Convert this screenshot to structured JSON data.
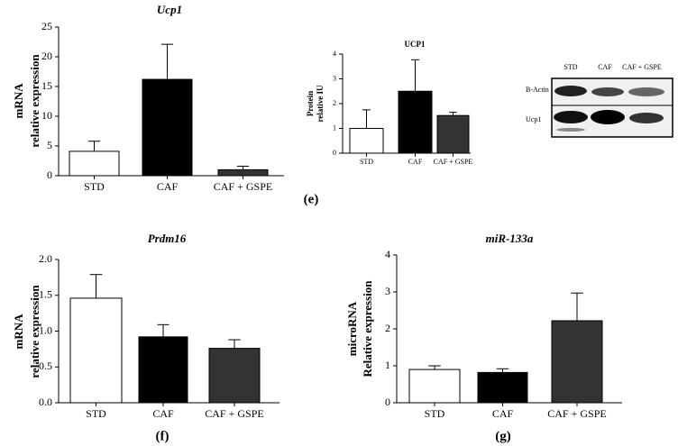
{
  "chart_data": [
    {
      "type": "bar",
      "title": "Ucp1",
      "ylabel": [
        "mRNA",
        "relative expression"
      ],
      "categories": [
        "STD",
        "CAF",
        "CAF + GSPE"
      ],
      "values": [
        4.1,
        16.2,
        1.0
      ],
      "errors": [
        1.7,
        5.9,
        0.6
      ],
      "colors": [
        "#ffffff",
        "#000000",
        "#333333"
      ],
      "ylim": [
        0,
        25
      ],
      "yticks": [
        0,
        5,
        10,
        15,
        20,
        25
      ]
    },
    {
      "type": "bar",
      "title": "UCP1",
      "ylabel": [
        "Protein",
        "relative IU"
      ],
      "categories": [
        "STD",
        "CAF",
        "CAF + GSPE"
      ],
      "values": [
        1.0,
        2.5,
        1.52
      ],
      "errors": [
        0.75,
        1.27,
        0.13
      ],
      "colors": [
        "#ffffff",
        "#000000",
        "#333333"
      ],
      "ylim": [
        0,
        4
      ],
      "yticks": [
        0,
        1,
        2,
        3,
        4
      ]
    },
    {
      "type": "bar",
      "title": "Prdm16",
      "ylabel": [
        "mRNA",
        "relative expression"
      ],
      "categories": [
        "STD",
        "CAF",
        "CAF + GSPE"
      ],
      "values": [
        1.46,
        0.92,
        0.76
      ],
      "errors": [
        0.33,
        0.17,
        0.12
      ],
      "colors": [
        "#ffffff",
        "#000000",
        "#333333"
      ],
      "ylim": [
        0,
        2
      ],
      "yticks": [
        {
          "value": 0,
          "label": "0.0"
        },
        {
          "value": 0.5,
          "label": "0.5"
        },
        {
          "value": 1,
          "label": "1.0"
        },
        {
          "value": 1.5,
          "label": "1.5"
        },
        {
          "value": 2,
          "label": "2.0"
        }
      ]
    },
    {
      "type": "bar",
      "title": "miR-133a",
      "ylabel": [
        "microRNA",
        "Relative expression"
      ],
      "categories": [
        "STD",
        "CAF",
        "CAF + GSPE"
      ],
      "values": [
        0.9,
        0.82,
        2.22
      ],
      "errors": [
        0.1,
        0.1,
        0.75
      ],
      "colors": [
        "#ffffff",
        "#000000",
        "#333333"
      ],
      "ylim": [
        0,
        4
      ],
      "yticks": [
        0,
        1,
        2,
        3,
        4
      ]
    }
  ],
  "panels": [
    "(e)",
    "(f)",
    "(g)"
  ],
  "blot": {
    "columns": [
      "STD",
      "CAF",
      "CAF + GSPE"
    ],
    "rows": [
      "B-Actin",
      "Ucp1"
    ]
  }
}
